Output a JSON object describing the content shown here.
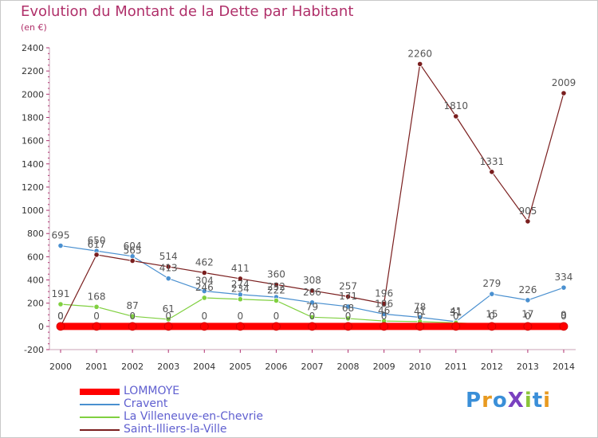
{
  "chart_data": {
    "type": "line",
    "title": "Evolution du Montant de la Dette par Habitant",
    "subtitle": "(en €)",
    "x": [
      "2000",
      "2001",
      "2002",
      "2003",
      "2004",
      "2005",
      "2006",
      "2007",
      "2008",
      "2009",
      "2010",
      "2011",
      "2012",
      "2013",
      "2014"
    ],
    "ylim": [
      -200,
      2400
    ],
    "yticks": [
      -200,
      0,
      200,
      400,
      600,
      800,
      1000,
      1200,
      1400,
      1600,
      1800,
      2000,
      2200,
      2400
    ],
    "ytick_labels": [
      "-200",
      "0",
      "200",
      "400",
      "600",
      "800",
      "1000",
      "1200",
      "1400",
      "1600",
      "1800",
      "2000",
      "2200",
      "2400"
    ],
    "series": [
      {
        "name": "LOMMOYE",
        "color": "#ff0000",
        "values": [
          0,
          0,
          0,
          0,
          0,
          0,
          0,
          0,
          0,
          0,
          0,
          0,
          0,
          0,
          0
        ],
        "labels": [
          "0",
          "0",
          "0",
          "0",
          "0",
          "0",
          "0",
          "0",
          "0",
          "0",
          "0",
          "0",
          "0",
          "0",
          "0"
        ]
      },
      {
        "name": "Cravent",
        "color": "#4a90d0",
        "values": [
          695,
          650,
          604,
          413,
          304,
          274,
          252,
          206,
          171,
          106,
          78,
          41,
          279,
          226,
          334
        ],
        "labels": [
          "695",
          "650",
          "604",
          "413",
          "304",
          "274",
          "252",
          "206",
          "171",
          "106",
          "78",
          "41",
          "279",
          "226",
          "334"
        ]
      },
      {
        "name": "La Villeneuve-en-Chevrie",
        "color": "#80d040",
        "values": [
          191,
          168,
          87,
          61,
          246,
          234,
          222,
          79,
          68,
          46,
          41,
          31,
          15,
          17,
          9
        ],
        "labels": [
          "191",
          "168",
          "87",
          "61",
          "246",
          "234",
          "222",
          "79",
          "68",
          "46",
          "41",
          "31",
          "15",
          "17",
          "9"
        ]
      },
      {
        "name": "Saint-Illiers-la-Ville",
        "color": "#7a1e1e",
        "values": [
          0,
          617,
          565,
          514,
          462,
          411,
          360,
          308,
          257,
          196,
          2260,
          1810,
          1331,
          905,
          2009
        ],
        "labels": [
          "0",
          "617",
          "565",
          "514",
          "462",
          "411",
          "360",
          "308",
          "257",
          "196",
          "2260",
          "1810",
          "1331",
          "905",
          "2009"
        ]
      }
    ],
    "grid": false,
    "legend_position": "bottom-left"
  },
  "logo_text": "ProXiti"
}
